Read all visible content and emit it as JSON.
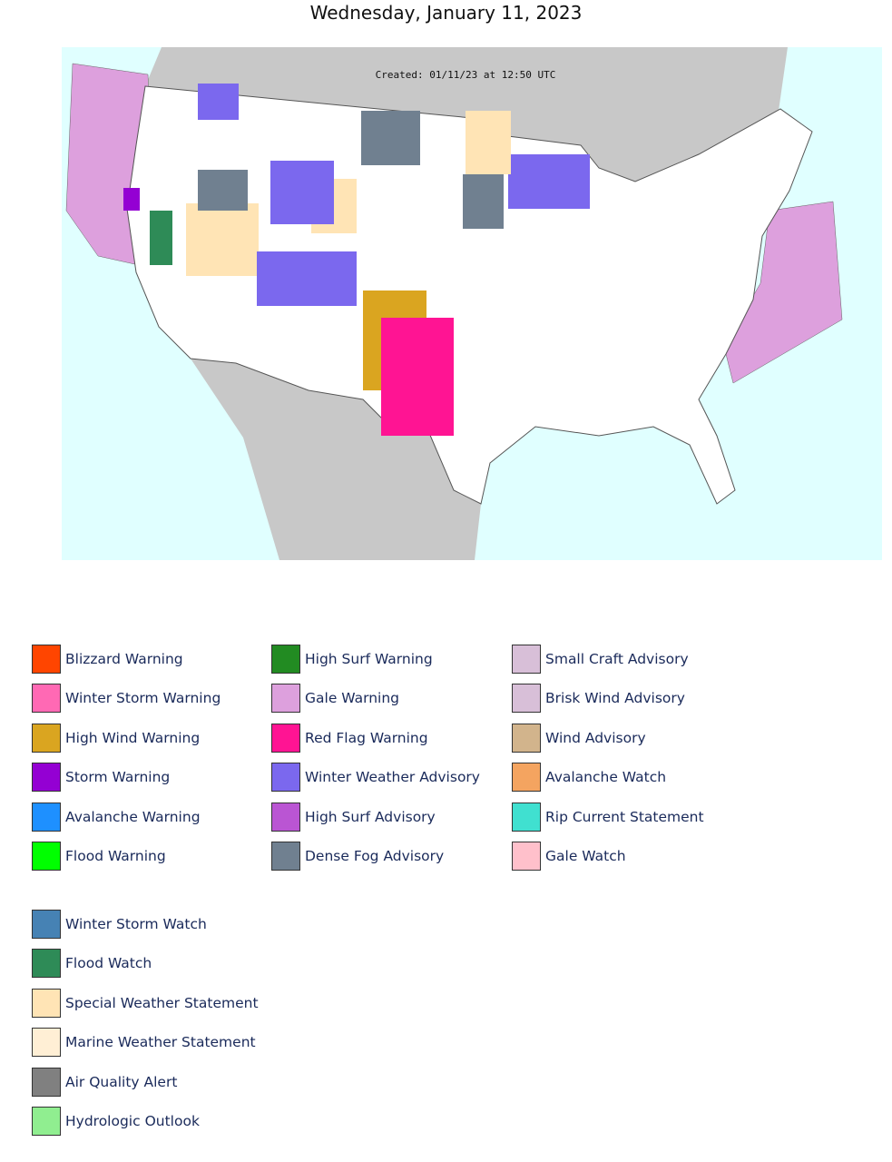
{
  "title": "Wednesday, January 11, 2023",
  "map": {
    "created_text": "Created: 01/11/23 at 12:50 UTC"
  },
  "legend": {
    "columns": [
      [
        {
          "label": "Blizzard Warning",
          "color": "#ff4500"
        },
        {
          "label": "Winter Storm Warning",
          "color": "#ff69b4"
        },
        {
          "label": "High Wind Warning",
          "color": "#daa520"
        },
        {
          "label": "Storm Warning",
          "color": "#9400d3"
        },
        {
          "label": "Avalanche Warning",
          "color": "#1e90ff"
        },
        {
          "label": "Flood Warning",
          "color": "#00ff00"
        }
      ],
      [
        {
          "label": "High Surf Warning",
          "color": "#228b22"
        },
        {
          "label": "Gale Warning",
          "color": "#dda0dd"
        },
        {
          "label": "Red Flag Warning",
          "color": "#ff1493"
        },
        {
          "label": "Winter Weather Advisory",
          "color": "#7b68ee"
        },
        {
          "label": "High Surf Advisory",
          "color": "#ba55d3"
        },
        {
          "label": "Dense Fog Advisory",
          "color": "#708090"
        }
      ],
      [
        {
          "label": "Small Craft Advisory",
          "color": "#d8bfd8"
        },
        {
          "label": "Brisk Wind Advisory",
          "color": "#d8bfd8"
        },
        {
          "label": "Wind Advisory",
          "color": "#d2b48c"
        },
        {
          "label": "Avalanche Watch",
          "color": "#f4a460"
        },
        {
          "label": "Rip Current Statement",
          "color": "#40e0d0"
        },
        {
          "label": "Gale Watch",
          "color": "#ffc0cb"
        }
      ]
    ],
    "extra": [
      {
        "label": "Winter Storm Watch",
        "color": "#4682b4"
      },
      {
        "label": "Flood Watch",
        "color": "#2e8b57"
      },
      {
        "label": "Special Weather Statement",
        "color": "#ffe4b5"
      },
      {
        "label": "Marine Weather Statement",
        "color": "#ffefd5"
      },
      {
        "label": "Air Quality Alert",
        "color": "#808080"
      },
      {
        "label": "Hydrologic Outlook",
        "color": "#90ee90"
      }
    ]
  }
}
